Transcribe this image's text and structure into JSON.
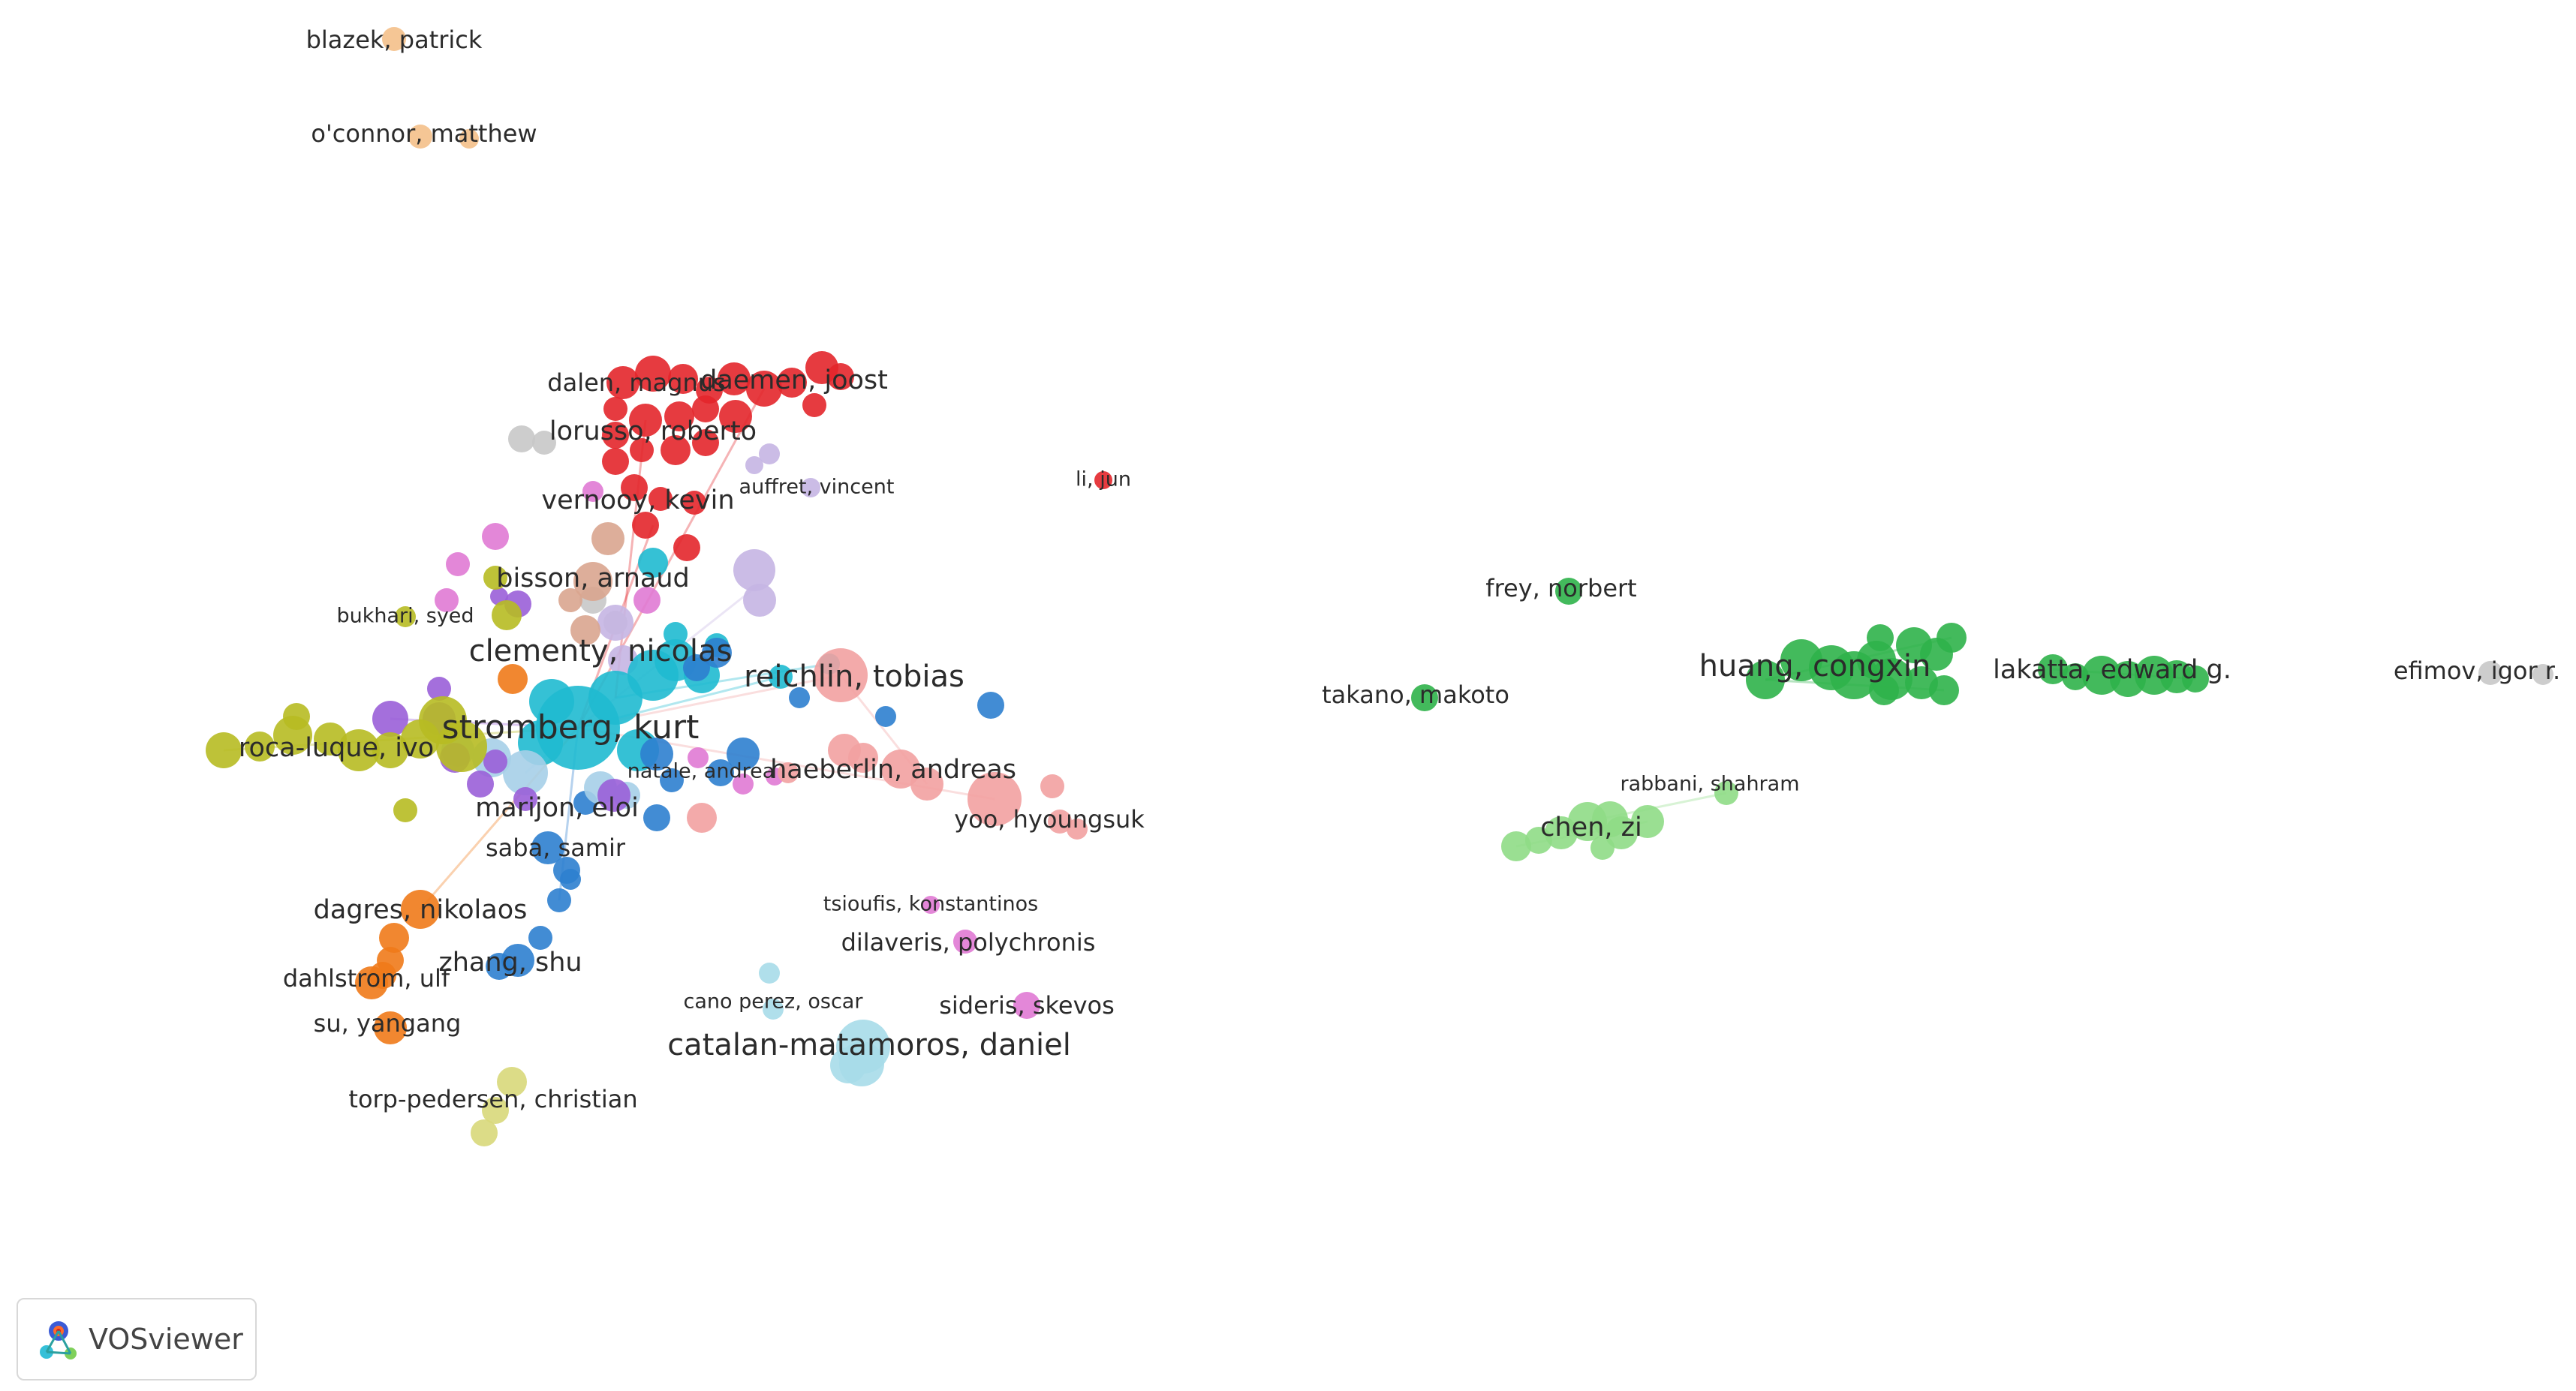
{
  "app": {
    "logo_text": "VOSviewer"
  },
  "colors": {
    "red": "#e3262b",
    "cyan": "#1fbad0",
    "olive": "#b7bb22",
    "purple": "#9a5fd8",
    "orange": "#f07a1a",
    "blue": "#2e7fcf",
    "salmon": "#f2a1a1",
    "pink": "#e07ad4",
    "lavender": "#c5b5e3",
    "lightblue": "#a6cfe8",
    "gray": "#c8c8c8",
    "peach": "#f4c08a",
    "green": "#2fb24a",
    "lightgreen": "#8fdc86",
    "tan": "#d9a58f",
    "khaki": "#d8d87a",
    "skyblue": "#a7dbe9"
  },
  "labels": [
    {
      "text": "blazek, patrick",
      "size": "s"
    },
    {
      "text": "o'connor, matthew",
      "size": "s"
    },
    {
      "text": "dalen, magnus",
      "size": "s"
    },
    {
      "text": "daemen, joost",
      "size": "m"
    },
    {
      "text": "lorusso, roberto",
      "size": "m"
    },
    {
      "text": "auffret, vincent",
      "size": "xs"
    },
    {
      "text": "li, jun",
      "size": "xs"
    },
    {
      "text": "vernooy, kevin",
      "size": "m"
    },
    {
      "text": "bisson, arnaud",
      "size": "m"
    },
    {
      "text": "bukhari, syed",
      "size": "xs"
    },
    {
      "text": "clementy, nicolas",
      "size": "l"
    },
    {
      "text": "reichlin, tobias",
      "size": "l"
    },
    {
      "text": "stromberg, kurt",
      "size": "xl"
    },
    {
      "text": "roca-luque, ivo",
      "size": "m"
    },
    {
      "text": "natale, andrea",
      "size": "xs"
    },
    {
      "text": "haeberlin, andreas",
      "size": "m"
    },
    {
      "text": "marijon, eloi",
      "size": "m"
    },
    {
      "text": "yoo, hyoungsuk",
      "size": "s"
    },
    {
      "text": "saba, samir",
      "size": "s"
    },
    {
      "text": "dagres, nikolaos",
      "size": "m"
    },
    {
      "text": "tsioufis, konstantinos",
      "size": "xs"
    },
    {
      "text": "dilaveris, polychronis",
      "size": "s"
    },
    {
      "text": "zhang, shu",
      "size": "m"
    },
    {
      "text": "dahlstrom, ulf",
      "size": "s"
    },
    {
      "text": "cano perez, oscar",
      "size": "xs"
    },
    {
      "text": "sideris, skevos",
      "size": "s"
    },
    {
      "text": "su, yangang",
      "size": "s"
    },
    {
      "text": "catalan-matamoros, daniel",
      "size": "l"
    },
    {
      "text": "torp-pedersen, christian",
      "size": "s"
    },
    {
      "text": "frey, norbert",
      "size": "s"
    },
    {
      "text": "takano, makoto",
      "size": "s"
    },
    {
      "text": "huang, congxin",
      "size": "l"
    },
    {
      "text": "lakatta, edward g.",
      "size": "m"
    },
    {
      "text": "efimov, igor r.",
      "size": "s"
    },
    {
      "text": "rabbani, shahram",
      "size": "xs"
    },
    {
      "text": "chen, zi",
      "size": "m"
    }
  ]
}
